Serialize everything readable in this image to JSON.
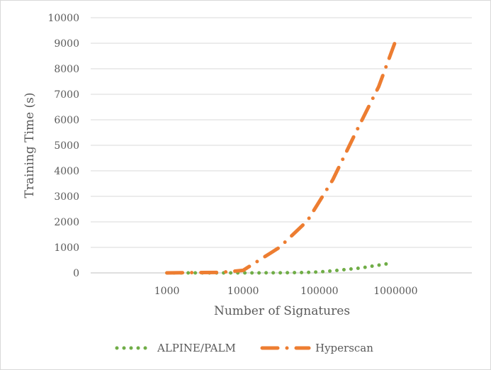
{
  "chart_data": {
    "type": "line",
    "title": "",
    "xlabel": "Number of Signatures",
    "ylabel": "Training Time (s)",
    "x_scale": "log",
    "x_ticks": [
      "1000",
      "10000",
      "100000",
      "1000000"
    ],
    "y_ticks": [
      "0",
      "1000",
      "2000",
      "3000",
      "4000",
      "5000",
      "6000",
      "7000",
      "8000",
      "9000",
      "10000"
    ],
    "xlim": [
      100,
      10000000
    ],
    "ylim": [
      0,
      10000
    ],
    "legend_position": "bottom",
    "series": [
      {
        "name": "ALPINE/PALM",
        "color": "#70ad47",
        "style": "dotted",
        "x": [
          1000,
          1500,
          2000,
          3000,
          4000,
          5000,
          7000,
          10000,
          15000,
          20000,
          30000,
          40000,
          50000,
          70000,
          100000,
          150000,
          200000,
          300000,
          400000,
          500000,
          700000,
          900000
        ],
        "y": [
          0,
          0,
          0,
          0,
          0,
          0,
          0,
          1,
          1,
          2,
          4,
          7,
          10,
          20,
          40,
          80,
          120,
          170,
          220,
          270,
          330,
          400
        ]
      },
      {
        "name": "Hyperscan",
        "color": "#ed7d31",
        "style": "dash-dot",
        "x": [
          1000,
          2000,
          5000,
          10000,
          30000,
          70000,
          150000,
          300000,
          600000,
          1000000
        ],
        "y": [
          0,
          10,
          20,
          100,
          1000,
          2050,
          3650,
          5500,
          7300,
          9100
        ]
      }
    ]
  }
}
